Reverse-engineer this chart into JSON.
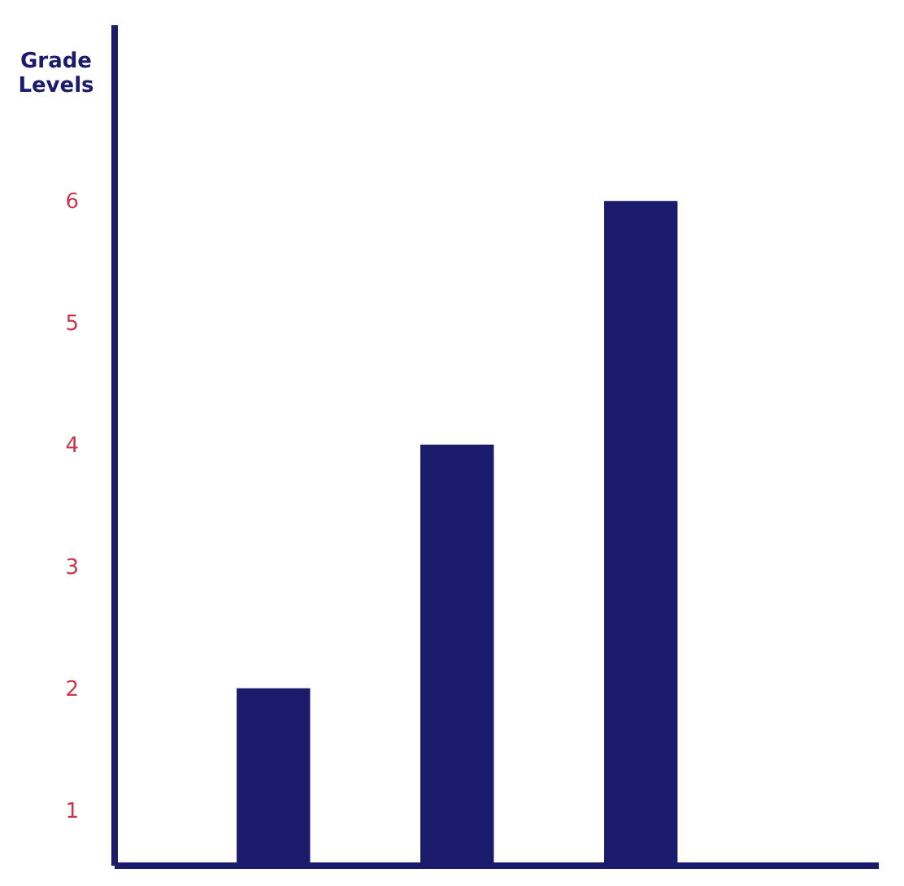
{
  "chart_data": {
    "type": "bar",
    "ylabel": "Grade Levels",
    "categories": [
      null,
      null,
      null
    ],
    "values": [
      2,
      4,
      6
    ],
    "color": "#1b1b6b",
    "ylim": [
      0.55,
      7.45
    ],
    "yticks": [
      1,
      2,
      3,
      4,
      5,
      6
    ],
    "grid": false
  }
}
